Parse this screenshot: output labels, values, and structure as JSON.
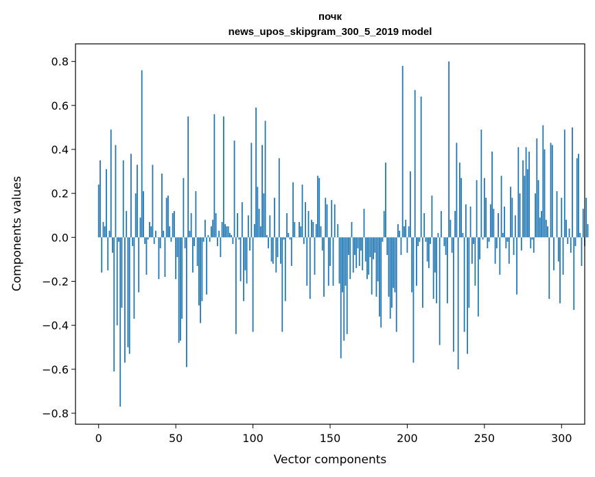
{
  "chart_data": {
    "type": "bar",
    "title_line1": "почк",
    "title_line2": "news_upos_skipgram_300_5_2019 model",
    "xlabel": "Vector components",
    "ylabel": "Components values",
    "xlim": [
      -15,
      315
    ],
    "ylim": [
      -0.85,
      0.88
    ],
    "xticks": [
      0,
      50,
      100,
      150,
      200,
      250,
      300
    ],
    "yticks": [
      -0.8,
      -0.6,
      -0.4,
      -0.2,
      0.0,
      0.2,
      0.4,
      0.6,
      0.8
    ],
    "ytick_labels": [
      "−0.8",
      "−0.6",
      "−0.4",
      "−0.2",
      "0.0",
      "0.2",
      "0.4",
      "0.6",
      "0.8"
    ],
    "bar_color": "#1f77b4",
    "values": [
      0.24,
      0.35,
      -0.16,
      0.07,
      0.05,
      0.31,
      -0.15,
      0.03,
      0.49,
      -0.07,
      -0.61,
      0.42,
      -0.4,
      -0.02,
      -0.77,
      -0.32,
      0.35,
      -0.57,
      0.12,
      -0.5,
      -0.53,
      0.38,
      -0.04,
      -0.37,
      0.2,
      0.33,
      -0.25,
      0.09,
      0.76,
      0.21,
      -0.03,
      -0.17,
      -0.01,
      0.07,
      0.05,
      0.33,
      -0.03,
      0.03,
      0.0,
      -0.19,
      -0.05,
      0.29,
      0.03,
      -0.18,
      0.18,
      0.19,
      0.05,
      -0.02,
      0.11,
      0.12,
      -0.19,
      -0.09,
      -0.48,
      -0.47,
      -0.37,
      0.27,
      -0.05,
      -0.59,
      0.55,
      0.03,
      0.11,
      -0.16,
      -0.04,
      0.21,
      -0.13,
      -0.31,
      -0.39,
      -0.29,
      -0.02,
      0.08,
      -0.26,
      0.01,
      -0.02,
      0.05,
      0.08,
      0.56,
      0.11,
      -0.04,
      0.03,
      -0.09,
      0.07,
      0.55,
      0.06,
      0.05,
      0.05,
      0.02,
      0.01,
      -0.03,
      0.44,
      -0.44,
      0.11,
      -0.01,
      -0.2,
      0.16,
      -0.29,
      -0.15,
      -0.21,
      0.1,
      -0.06,
      0.43,
      -0.43,
      0.06,
      0.59,
      0.23,
      0.13,
      0.05,
      0.42,
      0.2,
      0.53,
      0.01,
      -0.05,
      0.1,
      -0.11,
      -0.12,
      0.18,
      -0.16,
      -0.09,
      0.36,
      -0.12,
      -0.43,
      -0.01,
      -0.29,
      0.11,
      0.02,
      -0.01,
      -0.13,
      0.25,
      0.07,
      0.0,
      0.0,
      0.07,
      0.05,
      0.24,
      -0.03,
      0.16,
      -0.22,
      0.12,
      -0.28,
      0.08,
      0.07,
      -0.17,
      0.06,
      0.28,
      0.27,
      0.05,
      -0.06,
      -0.27,
      0.18,
      0.15,
      -0.22,
      -0.13,
      0.17,
      -0.22,
      0.15,
      0.0,
      0.06,
      -0.21,
      -0.55,
      -0.25,
      -0.47,
      -0.22,
      -0.44,
      -0.08,
      -0.19,
      0.07,
      -0.16,
      -0.08,
      -0.14,
      -0.05,
      -0.13,
      -0.06,
      -0.15,
      0.13,
      -0.11,
      -0.19,
      -0.17,
      -0.09,
      -0.26,
      -0.1,
      -0.07,
      -0.27,
      -0.2,
      -0.36,
      -0.41,
      -0.02,
      0.12,
      0.34,
      -0.08,
      -0.27,
      -0.37,
      -0.32,
      -0.23,
      -0.25,
      -0.43,
      0.06,
      0.03,
      -0.08,
      0.78,
      0.05,
      0.08,
      -0.07,
      0.05,
      0.3,
      -0.25,
      -0.57,
      0.67,
      -0.22,
      -0.04,
      -0.02,
      0.64,
      -0.32,
      0.11,
      -0.02,
      -0.11,
      -0.14,
      -0.03,
      0.19,
      -0.28,
      -0.16,
      -0.3,
      0.02,
      -0.49,
      0.12,
      0.0,
      -0.04,
      -0.08,
      -0.3,
      0.8,
      0.08,
      -0.07,
      -0.52,
      0.12,
      0.43,
      -0.6,
      0.34,
      0.27,
      0.02,
      -0.43,
      0.15,
      -0.53,
      -0.32,
      0.14,
      -0.12,
      -0.03,
      -0.22,
      0.26,
      -0.36,
      -0.1,
      0.49,
      -0.01,
      0.27,
      0.18,
      -0.05,
      -0.02,
      0.15,
      0.39,
      0.13,
      -0.12,
      -0.05,
      0.11,
      -0.17,
      0.28,
      0.02,
      0.14,
      -0.05,
      -0.02,
      -0.12,
      0.23,
      0.18,
      -0.08,
      0.1,
      -0.26,
      0.41,
      0.2,
      -0.06,
      0.35,
      0.28,
      0.41,
      0.31,
      0.39,
      -0.05,
      -0.01,
      -0.07,
      0.2,
      0.45,
      0.26,
      0.09,
      0.12,
      0.51,
      0.4,
      0.08,
      0.05,
      -0.28,
      0.43,
      0.42,
      -0.15,
      0.0,
      0.21,
      -0.11,
      -0.3,
      0.18,
      -0.17,
      0.49,
      0.08,
      -0.03,
      0.04,
      -0.07,
      0.5,
      -0.33,
      -0.04,
      0.36,
      0.38,
      0.02,
      -0.13,
      0.13,
      -0.04,
      0.18,
      0.06
    ]
  }
}
